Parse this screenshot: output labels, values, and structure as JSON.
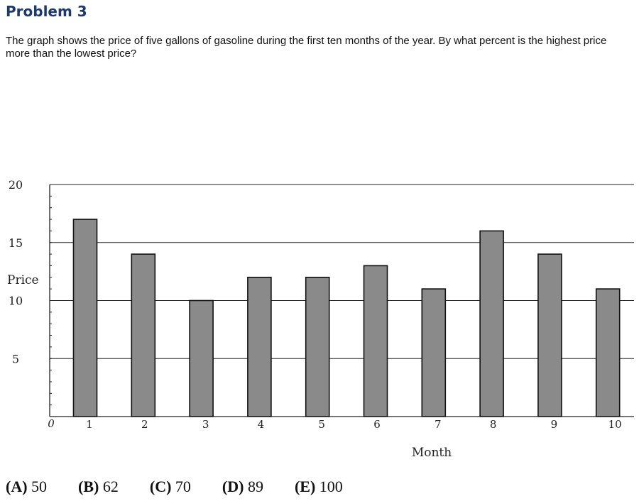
{
  "problem": {
    "title": "Problem 3",
    "question": "The graph shows the price of five gallons of gasoline during the first ten months of the year. By what percent is the highest price more than the lowest price?"
  },
  "chart_data": {
    "type": "bar",
    "categories": [
      "1",
      "2",
      "3",
      "4",
      "5",
      "6",
      "7",
      "8",
      "9",
      "10"
    ],
    "values": [
      17,
      14,
      10,
      12,
      12,
      13,
      11,
      16,
      14,
      11
    ],
    "ylabel": "Price",
    "xlabel": "Month",
    "ylim": [
      0,
      20
    ],
    "y_ticks": [
      "5",
      "10",
      "15",
      "20"
    ],
    "x_origin_label": "0",
    "grid": true,
    "bar_color": "#8a8a8a"
  },
  "choices": [
    {
      "letter": "(A)",
      "value": "50"
    },
    {
      "letter": "(B)",
      "value": "62"
    },
    {
      "letter": "(C)",
      "value": "70"
    },
    {
      "letter": "(D)",
      "value": "89"
    },
    {
      "letter": "(E)",
      "value": "100"
    }
  ]
}
